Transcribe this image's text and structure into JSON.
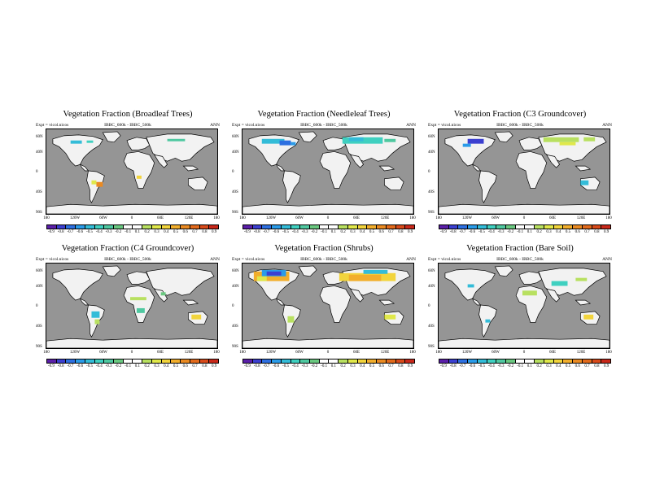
{
  "common": {
    "expt_label": "Expt = vicol.nicos",
    "season": "ANN",
    "lat_ticks": [
      "60N",
      "40N",
      "0",
      "40S",
      "90S"
    ],
    "lon_ticks": [
      "180",
      "120W",
      "60W",
      "0",
      "60E",
      "120E",
      "180"
    ],
    "palette": [
      "#5a1fa8",
      "#3b3fd0",
      "#2d6fe0",
      "#2a9be8",
      "#33bcd8",
      "#3fd0c0",
      "#4fc8a0",
      "#6ac880",
      "#ffffff",
      "#ffffff",
      "#b8e060",
      "#e0e84a",
      "#f2d43c",
      "#f2ae2c",
      "#ea8a22",
      "#e26a1c",
      "#d84a1a",
      "#c8281a"
    ],
    "land_color": "#f2f2f2",
    "ocean_color": "#959595"
  },
  "panels": [
    {
      "title": "Vegetation Fraction (Broadleaf Trees)",
      "subtitle": "IBBC_600k - IBBC_500k",
      "colorbar_labels": [
        "-0.9",
        "-0.8",
        "-0.7",
        "-0.6",
        "-0.5",
        "-0.4",
        "-0.3",
        "-0.2",
        "-0.1",
        "0.1",
        "0.2",
        "0.3",
        "0.4",
        "0.5",
        "0.6",
        "0.7",
        "0.8",
        "0.9"
      ]
    },
    {
      "title": "Vegetation Fraction (Needleleaf Trees)",
      "subtitle": "IBBC_600k - IBBC_500k",
      "colorbar_labels": [
        "-0.9",
        "-0.8",
        "-0.7",
        "-0.6",
        "-0.5",
        "-0.4",
        "-0.3",
        "-0.2",
        "-0.1",
        "0.1",
        "0.2",
        "0.3",
        "0.4",
        "0.5",
        "0.6",
        "0.7",
        "0.8",
        "0.9"
      ]
    },
    {
      "title": "Vegetation Fraction (C3 Groundcover)",
      "subtitle": "IBBC_600k - IBBC_500k",
      "colorbar_labels": [
        "-0.9",
        "-0.8",
        "-0.7",
        "-0.6",
        "-0.5",
        "-0.4",
        "-0.3",
        "-0.2",
        "-0.1",
        "0.1",
        "0.2",
        "0.3",
        "0.4",
        "0.5",
        "0.6",
        "0.7",
        "0.8",
        "0.9"
      ]
    },
    {
      "title": "Vegetation Fraction (C4 Groundcover)",
      "subtitle": "IBBC_600k - IBBC_500k",
      "colorbar_labels": [
        "-0.9",
        "-0.8",
        "-0.7",
        "-0.6",
        "-0.5",
        "-0.4",
        "-0.3",
        "-0.2",
        "-0.1",
        "0.1",
        "0.2",
        "0.3",
        "0.4",
        "0.5",
        "0.6",
        "0.7",
        "0.8",
        "0.9"
      ]
    },
    {
      "title": "Vegetation Fraction (Shrubs)",
      "subtitle": "IBBC_600k - IBBC_500k",
      "colorbar_labels": [
        "-0.9",
        "-0.8",
        "-0.7",
        "-0.6",
        "-0.5",
        "-0.4",
        "-0.3",
        "-0.2",
        "-0.1",
        "0.1",
        "0.2",
        "0.3",
        "0.4",
        "0.5",
        "0.6",
        "0.7",
        "0.8",
        "0.9"
      ]
    },
    {
      "title": "Vegetation Fraction (Bare Soil)",
      "subtitle": "IBBC_600k - IBBC_500k",
      "colorbar_labels": [
        "-0.9",
        "-0.8",
        "-0.7",
        "-0.6",
        "-0.5",
        "-0.4",
        "-0.3",
        "-0.2",
        "-0.1",
        "0.1",
        "0.2",
        "0.3",
        "0.4",
        "0.5",
        "0.6",
        "0.7",
        "0.8",
        "0.9"
      ]
    }
  ]
}
